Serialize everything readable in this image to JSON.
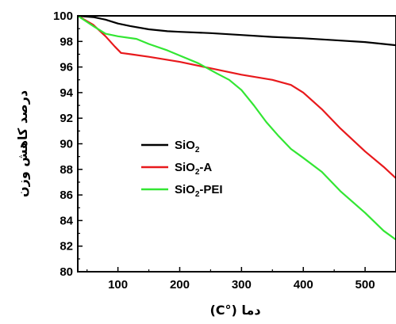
{
  "chart_data": {
    "type": "line",
    "xlabel": "دما (°C)",
    "ylabel": "درصد کاهش وزن",
    "xlim": [
      35,
      550
    ],
    "ylim": [
      80,
      100
    ],
    "x_ticks": [
      100,
      200,
      300,
      400,
      500
    ],
    "y_ticks": [
      80,
      82,
      84,
      86,
      88,
      90,
      92,
      94,
      96,
      98,
      100
    ],
    "grid": false,
    "legend_position": "center-left",
    "series": [
      {
        "name": "SiO2",
        "name_main": "SiO",
        "name_sub": "2",
        "name_suffix": "",
        "color": "#000000",
        "x": [
          35,
          60,
          80,
          100,
          120,
          150,
          180,
          200,
          250,
          300,
          350,
          400,
          450,
          500,
          550
        ],
        "y": [
          100,
          99.9,
          99.7,
          99.4,
          99.2,
          98.95,
          98.8,
          98.75,
          98.65,
          98.5,
          98.35,
          98.25,
          98.1,
          97.95,
          97.7
        ]
      },
      {
        "name": "SiO2-A",
        "name_main": "SiO",
        "name_sub": "2",
        "name_suffix": "-A",
        "color": "#e8191c",
        "x": [
          35,
          60,
          80,
          95,
          105,
          120,
          150,
          200,
          250,
          300,
          350,
          380,
          400,
          430,
          460,
          500,
          530,
          550
        ],
        "y": [
          100,
          99.3,
          98.4,
          97.6,
          97.1,
          97.0,
          96.8,
          96.4,
          95.9,
          95.4,
          95.0,
          94.6,
          94.0,
          92.7,
          91.2,
          89.4,
          88.2,
          87.3
        ]
      },
      {
        "name": "SiO2-PEI",
        "name_main": "SiO",
        "name_sub": "2",
        "name_suffix": "-PEI",
        "color": "#33e633",
        "x": [
          35,
          60,
          80,
          100,
          130,
          150,
          180,
          200,
          230,
          260,
          280,
          300,
          320,
          340,
          360,
          380,
          400,
          430,
          460,
          500,
          530,
          550
        ],
        "y": [
          100,
          99.2,
          98.6,
          98.4,
          98.2,
          97.8,
          97.3,
          96.9,
          96.3,
          95.5,
          95.0,
          94.2,
          93.0,
          91.7,
          90.6,
          89.6,
          88.9,
          87.8,
          86.3,
          84.6,
          83.2,
          82.5
        ]
      }
    ]
  }
}
